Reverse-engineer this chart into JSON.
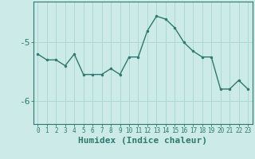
{
  "xlabel": "Humidex (Indice chaleur)",
  "x": [
    0,
    1,
    2,
    3,
    4,
    5,
    6,
    7,
    8,
    9,
    10,
    11,
    12,
    13,
    14,
    15,
    16,
    17,
    18,
    19,
    20,
    21,
    22,
    23
  ],
  "y": [
    -5.2,
    -5.3,
    -5.3,
    -5.4,
    -5.2,
    -5.55,
    -5.55,
    -5.55,
    -5.45,
    -5.55,
    -5.25,
    -5.25,
    -4.8,
    -4.55,
    -4.6,
    -4.75,
    -5.0,
    -5.15,
    -5.25,
    -5.25,
    -5.8,
    -5.8,
    -5.65,
    -5.8
  ],
  "line_color": "#2d7a6e",
  "marker": "o",
  "marker_size": 2.5,
  "bg_color": "#cceae7",
  "grid_color": "#add8d4",
  "axis_color": "#2d7a6e",
  "ylim": [
    -6.4,
    -4.3
  ],
  "yticks": [
    -6,
    -5
  ],
  "xlim": [
    -0.5,
    23.5
  ],
  "tick_label_color": "#2d7a6e",
  "xlabel_fontsize": 8,
  "ytick_fontsize": 8,
  "xtick_fontsize": 5.5
}
